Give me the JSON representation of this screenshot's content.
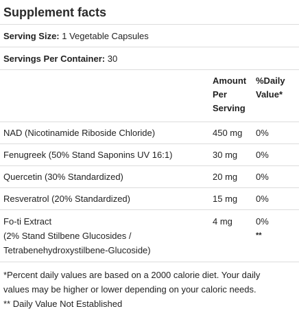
{
  "title": "Supplement facts",
  "serving_size": {
    "label": "Serving Size:",
    "value": "1 Vegetable Capsules"
  },
  "servings_per_container": {
    "label": "Servings Per Container:",
    "value": "30"
  },
  "table": {
    "headers": {
      "amount_line1": "Amount",
      "amount_line2": "Per",
      "amount_line3": "Serving",
      "dv_line1": "%Daily",
      "dv_line2": "Value*"
    },
    "rows": [
      {
        "name": "NAD (Nicotinamide Riboside Chloride)",
        "amount": "450 mg",
        "dv": "0%"
      },
      {
        "name": "Fenugreek (50% Stand Saponins UV 16:1)",
        "amount": "30 mg",
        "dv": "0%"
      },
      {
        "name": "Quercetin (30% Standardized)",
        "amount": "20 mg",
        "dv": "0%"
      },
      {
        "name": "Resveratrol (20% Standardized)",
        "amount": "15 mg",
        "dv": "0%"
      }
    ],
    "last_row": {
      "name_line1": "Fo-ti Extract",
      "name_line2": "(2% Stand Stilbene Glucosides /",
      "name_line3": "Tetrabenehydroxystilbene-Glucoside)",
      "amount": "4 mg",
      "dv": "0%",
      "dv_note": "**"
    }
  },
  "footnotes": {
    "line1": "*Percent daily values are based on a 2000 calorie diet. Your daily",
    "line2": "values may be higher or lower depending on your caloric needs.",
    "line3": "** Daily Value Not Established"
  }
}
